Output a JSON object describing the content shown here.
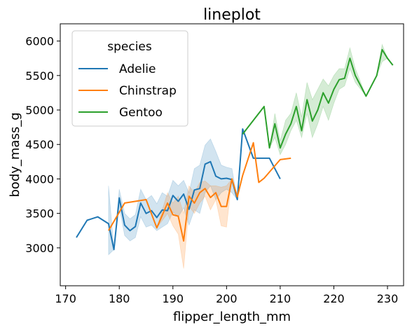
{
  "chart_data": {
    "type": "line",
    "title": "lineplot",
    "xlabel": "flipper_length_mm",
    "ylabel": "body_mass_g",
    "xlim": [
      169,
      233
    ],
    "ylim": [
      2450,
      6250
    ],
    "xticks": [
      170,
      180,
      190,
      200,
      210,
      220,
      230
    ],
    "yticks": [
      3000,
      3500,
      4000,
      4500,
      5000,
      5500,
      6000
    ],
    "legend": {
      "title": "species",
      "position": "upper-left"
    },
    "series": [
      {
        "name": "Adelie",
        "color": "#1f77b4",
        "x": [
          172,
          174,
          176,
          178,
          179,
          180,
          181,
          182,
          183,
          184,
          185,
          186,
          187,
          188,
          189,
          190,
          191,
          192,
          193,
          194,
          195,
          196,
          197,
          198,
          199,
          200,
          201,
          202,
          203,
          205,
          207,
          208,
          210
        ],
        "y": [
          3150,
          3400,
          3450,
          3350,
          2975,
          3725,
          3330,
          3250,
          3310,
          3650,
          3500,
          3540,
          3440,
          3550,
          3540,
          3760,
          3675,
          3780,
          3560,
          3840,
          3860,
          4215,
          4250,
          4040,
          4000,
          4010,
          3990,
          3700,
          4725,
          4300,
          4300,
          4300,
          4000
        ],
        "ci_x": [
          178,
          179,
          180,
          181,
          182,
          183,
          184,
          185,
          186,
          187,
          188,
          189,
          190,
          191,
          192,
          193,
          194,
          195,
          196,
          197,
          198,
          199,
          200,
          201,
          202,
          203,
          205,
          207,
          208,
          210
        ],
        "ci_low": [
          2900,
          2975,
          3600,
          3180,
          3100,
          3150,
          3450,
          3300,
          3330,
          3250,
          3300,
          3350,
          3520,
          3450,
          3580,
          3330,
          3550,
          3500,
          3800,
          3900,
          3700,
          3800,
          3850,
          3800,
          3700,
          4725,
          4300,
          4300,
          4300,
          4000
        ],
        "ci_high": [
          3900,
          2975,
          3850,
          3500,
          3420,
          3480,
          3850,
          3700,
          3760,
          3640,
          3800,
          3750,
          3980,
          3900,
          3980,
          3800,
          4150,
          4200,
          4490,
          4580,
          4400,
          4200,
          4170,
          4150,
          3700,
          4725,
          4300,
          4300,
          4300,
          4000
        ]
      },
      {
        "name": "Chinstrap",
        "color": "#ff7f0e",
        "x": [
          178,
          181,
          185,
          187,
          189,
          190,
          191,
          192,
          193,
          194,
          195,
          196,
          197,
          198,
          199,
          200,
          201,
          202,
          203,
          205,
          206,
          207,
          210,
          212
        ],
        "y": [
          3250,
          3650,
          3700,
          3290,
          3650,
          3480,
          3460,
          3100,
          3750,
          3650,
          3800,
          3860,
          3730,
          3800,
          3600,
          3600,
          4000,
          3740,
          4050,
          4525,
          3950,
          4010,
          4280,
          4300
        ],
        "ci_x": [
          178,
          181,
          185,
          187,
          189,
          190,
          191,
          192,
          193,
          194,
          195,
          196,
          197,
          198,
          199,
          200,
          201,
          202,
          203,
          205,
          206,
          207,
          210,
          212
        ],
        "ci_low": [
          3250,
          3650,
          3700,
          3290,
          3500,
          3320,
          3200,
          2700,
          3600,
          3500,
          3650,
          3750,
          3550,
          3700,
          3320,
          3300,
          4000,
          3740,
          4050,
          4525,
          3950,
          4010,
          4280,
          4300
        ],
        "ci_high": [
          3250,
          3650,
          3700,
          3290,
          3800,
          3650,
          3750,
          3500,
          3900,
          3800,
          3950,
          3970,
          3900,
          3900,
          3880,
          3900,
          4000,
          3740,
          4050,
          4525,
          3950,
          4010,
          4280,
          4300
        ]
      },
      {
        "name": "Gentoo",
        "color": "#2ca02c",
        "x": [
          203,
          207,
          208,
          209,
          210,
          211,
          212,
          213,
          214,
          215,
          216,
          217,
          218,
          219,
          220,
          221,
          222,
          223,
          224,
          225,
          226,
          228,
          229,
          230,
          231
        ],
        "y": [
          4650,
          5050,
          4450,
          4800,
          4450,
          4650,
          4800,
          5050,
          4700,
          5150,
          4840,
          5000,
          5250,
          5100,
          5300,
          5440,
          5460,
          5750,
          5500,
          5350,
          5200,
          5500,
          5875,
          5750,
          5650
        ],
        "ci_x": [
          203,
          207,
          208,
          209,
          210,
          211,
          212,
          213,
          214,
          215,
          216,
          217,
          218,
          219,
          220,
          221,
          222,
          223,
          224,
          225,
          226,
          228,
          229,
          230,
          231
        ],
        "ci_low": [
          4650,
          5050,
          4450,
          4600,
          4350,
          4500,
          4700,
          4850,
          4600,
          4950,
          4600,
          4800,
          5050,
          4850,
          5100,
          5300,
          5350,
          5600,
          5400,
          5300,
          5200,
          5500,
          5700,
          5750,
          5650
        ],
        "ci_high": [
          4650,
          5050,
          4450,
          4950,
          4550,
          4850,
          4950,
          5250,
          4900,
          5400,
          5150,
          5300,
          5450,
          5350,
          5500,
          5600,
          5600,
          5900,
          5600,
          5400,
          5200,
          5500,
          5950,
          5750,
          5650
        ]
      }
    ]
  }
}
